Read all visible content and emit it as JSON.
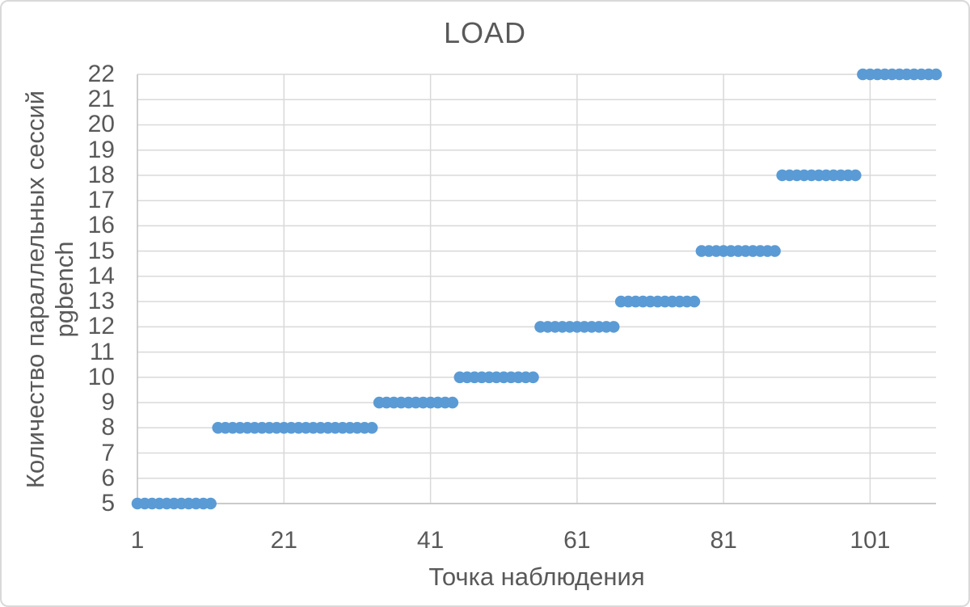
{
  "chart_data": {
    "type": "scatter",
    "title": "LOAD",
    "xlabel": "Точка наблюдения",
    "ylabel_lines": [
      "Количество параллельных сессий",
      "pgbench"
    ],
    "legend": "none",
    "grid": true,
    "x_axis": {
      "min": 1,
      "max": 110,
      "tick_interval": 20,
      "ticks": [
        1,
        21,
        41,
        61,
        81,
        101
      ]
    },
    "y_axis": {
      "min": 5,
      "max": 22,
      "tick_interval": 1,
      "ticks": [
        22,
        21,
        20,
        19,
        18,
        17,
        16,
        15,
        14,
        13,
        12,
        11,
        10,
        9,
        8,
        7,
        6,
        5
      ]
    },
    "series": [
      {
        "name": "LOAD",
        "marker": "circle",
        "marker_color": "#5B9BD5",
        "description": "Step-shaped load profile: consecutive integer observation points sharing the same session count",
        "steps": [
          {
            "y": 5,
            "x_start": 1,
            "x_end": 11
          },
          {
            "y": 8,
            "x_start": 12,
            "x_end": 33
          },
          {
            "y": 9,
            "x_start": 34,
            "x_end": 44
          },
          {
            "y": 10,
            "x_start": 45,
            "x_end": 55
          },
          {
            "y": 12,
            "x_start": 56,
            "x_end": 66
          },
          {
            "y": 13,
            "x_start": 67,
            "x_end": 77
          },
          {
            "y": 15,
            "x_start": 78,
            "x_end": 88
          },
          {
            "y": 18,
            "x_start": 89,
            "x_end": 99
          },
          {
            "y": 22,
            "x_start": 100,
            "x_end": 110
          }
        ]
      }
    ],
    "colors": {
      "marker": "#5B9BD5",
      "text": "#595959",
      "gridline": "#D9D9D9",
      "axis_line": "#BFBFBF",
      "frame_border": "#D9D9D9",
      "background": "#FFFFFF"
    }
  }
}
